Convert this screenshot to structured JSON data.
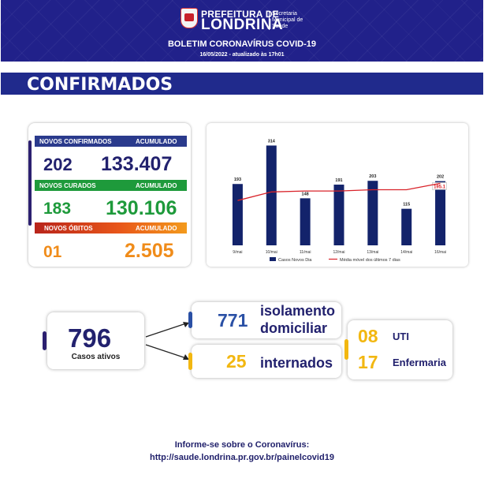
{
  "header": {
    "pref_line1": "PREFEITURA DE",
    "pref_line2": "LONDRINA",
    "sec_line1": "Secretaria",
    "sec_line2": "Municipal de",
    "sec_line3": "Saúde",
    "bulletin": "BOLETIM CORONAVÍRUS COVID-19",
    "date": "16/05/2022 - atualizado às 17h01"
  },
  "section_title": "CONFIRMADOS",
  "stats": {
    "confirmados": {
      "label": "NOVOS CONFIRMADOS",
      "acc_label": "ACUMULADO",
      "new": "202",
      "acc": "133.407"
    },
    "curados": {
      "label": "NOVOS CURADOS",
      "acc_label": "ACUMULADO",
      "new": "183",
      "acc": "130.106"
    },
    "obitos": {
      "label": "NOVOS ÓBITOS",
      "acc_label": "ACUMULADO",
      "new": "01",
      "acc": "2.505"
    }
  },
  "colors": {
    "navy": "#22216e",
    "green": "#1e9a3b",
    "orange": "#f08c1a",
    "yellow": "#f2b711",
    "blue": "#2a50a5"
  },
  "chart_data": {
    "type": "bar",
    "categories": [
      "9/mai",
      "10/mai",
      "11/mai",
      "12/mai",
      "13/mai",
      "14/mai",
      "16/mai"
    ],
    "series": [
      {
        "name": "Casos Novos Dia",
        "values": [
          193,
          314,
          148,
          191,
          203,
          115,
          202
        ]
      },
      {
        "name": "Média móvel dos últimos 7 dias",
        "values": [
          141,
          168,
          171,
          171,
          175,
          175,
          195.1
        ]
      }
    ],
    "last_avg_label": "195.1",
    "legend": "bottom",
    "ylim": [
      0,
      340
    ]
  },
  "active": {
    "count": "796",
    "label": "Casos ativos"
  },
  "isolamento": {
    "count": "771",
    "line1": "isolamento",
    "line2": "domiciliar"
  },
  "internados": {
    "count": "25",
    "label": "internados"
  },
  "uti": {
    "count": "08",
    "label": "UTI"
  },
  "enfermaria": {
    "count": "17",
    "label": "Enfermaria"
  },
  "footer": {
    "line1": "Informe-se sobre o Coronavírus:",
    "line2": "http://saude.londrina.pr.gov.br/painelcovid19"
  }
}
